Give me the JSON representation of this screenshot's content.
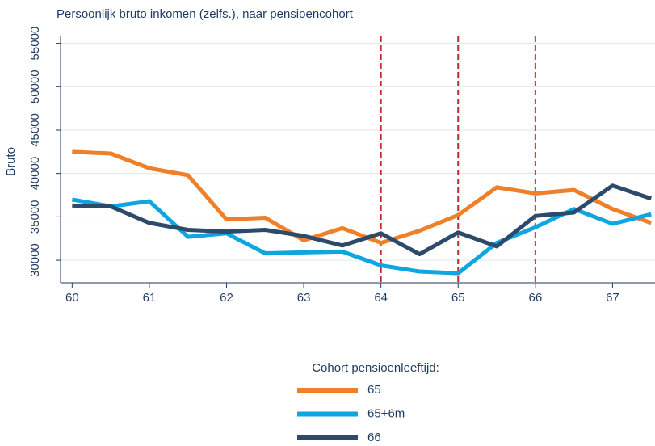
{
  "chart_data": {
    "type": "line",
    "title": "Persoonlijk bruto inkomen (zelfs.), naar pensioencohort",
    "y_label": "Bruto",
    "x": [
      60,
      60.5,
      61,
      61.5,
      62,
      62.5,
      63,
      63.5,
      64,
      64.5,
      65,
      65.5,
      66,
      66.5,
      67,
      67.5
    ],
    "series": [
      {
        "name": "65",
        "color": "#f07f29",
        "values": [
          42500,
          42300,
          40600,
          39800,
          34700,
          34900,
          32300,
          33700,
          32000,
          33400,
          35200,
          38400,
          37700,
          38100,
          35900,
          34300
        ]
      },
      {
        "name": "65+6m",
        "color": "#0ea5e0",
        "values": [
          37000,
          36200,
          36800,
          32700,
          33100,
          30800,
          30900,
          31000,
          29400,
          28700,
          28500,
          32000,
          33800,
          35900,
          34200,
          35300
        ]
      },
      {
        "name": "66",
        "color": "#2e4a6b",
        "values": [
          36300,
          36200,
          34300,
          33500,
          33300,
          33500,
          32800,
          31700,
          33100,
          30700,
          33200,
          31600,
          35100,
          35500,
          38600,
          37100
        ]
      }
    ],
    "xlim": [
      59.85,
      67.55
    ],
    "xticks": [
      60,
      61,
      62,
      63,
      64,
      65,
      66,
      67
    ],
    "ylim": [
      27400,
      55800
    ],
    "yticks": [
      30000,
      35000,
      40000,
      45000,
      50000,
      55000
    ],
    "grid": true,
    "vlines": [
      64,
      65,
      66
    ],
    "vline_color": "#c0282d",
    "legend_title": "Cohort pensioenleeftijd:",
    "legend_position": "bottom"
  }
}
